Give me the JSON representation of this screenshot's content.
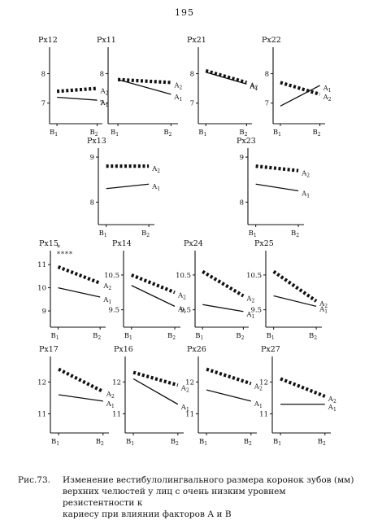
{
  "page_number": "195",
  "caption": {
    "label": "Рис.73.",
    "lines": [
      "Изменение вестибулолингвального размера коронок зубов (мм)",
      "верхних челюстей у лиц с очень низким уровнем резистентности к",
      "кариесу при влиянии  факторов А и В"
    ]
  },
  "colors": {
    "ink": "#111111"
  },
  "chart_data": [
    {
      "type": "line",
      "title": "Px12",
      "categories": [
        "B1",
        "B2"
      ],
      "yticks": [
        {
          "v": 7,
          "t": "7"
        },
        {
          "v": 8,
          "t": "8"
        }
      ],
      "ylim": [
        6.3,
        8.9
      ],
      "series": [
        {
          "name": "A2",
          "style": "dotted",
          "values": [
            7.4,
            7.5
          ]
        },
        {
          "name": "A1",
          "style": "solid",
          "values": [
            7.2,
            7.1
          ]
        }
      ]
    },
    {
      "type": "line",
      "title": "Px11",
      "categories": [
        "B1",
        "B2"
      ],
      "yticks": [
        {
          "v": 7,
          "t": "7"
        },
        {
          "v": 8,
          "t": "8"
        }
      ],
      "ylim": [
        6.3,
        8.9
      ],
      "series": [
        {
          "name": "A2",
          "style": "dotted",
          "values": [
            7.8,
            7.7
          ]
        },
        {
          "name": "A1",
          "style": "solid",
          "values": [
            7.8,
            7.3
          ]
        }
      ]
    },
    {
      "type": "line",
      "title": "Px21",
      "categories": [
        "B1",
        "B2"
      ],
      "yticks": [
        {
          "v": 7,
          "t": "7"
        },
        {
          "v": 8,
          "t": "8"
        }
      ],
      "ylim": [
        6.3,
        8.9
      ],
      "series": [
        {
          "name": "A2",
          "style": "dotted",
          "values": [
            8.1,
            7.7
          ]
        },
        {
          "name": "A1",
          "style": "solid",
          "values": [
            8.05,
            7.65
          ]
        }
      ]
    },
    {
      "type": "line",
      "title": "Px22",
      "categories": [
        "B1",
        "B2"
      ],
      "yticks": [
        {
          "v": 7,
          "t": "7"
        },
        {
          "v": 8,
          "t": "8"
        }
      ],
      "ylim": [
        6.3,
        8.9
      ],
      "series": [
        {
          "name": "A1",
          "style": "solid",
          "values": [
            6.9,
            7.6
          ]
        },
        {
          "name": "A2",
          "style": "dotted",
          "values": [
            7.7,
            7.3
          ]
        }
      ]
    },
    {
      "type": "line",
      "title": "Px13",
      "categories": [
        "B1",
        "B2"
      ],
      "yticks": [
        {
          "v": 8,
          "t": "8"
        },
        {
          "v": 9,
          "t": "9"
        }
      ],
      "ylim": [
        7.5,
        9.2
      ],
      "series": [
        {
          "name": "A2",
          "style": "dotted",
          "values": [
            8.8,
            8.8
          ]
        },
        {
          "name": "A1",
          "style": "solid",
          "values": [
            8.3,
            8.4
          ]
        }
      ]
    },
    {
      "type": "line",
      "title": "Px23",
      "categories": [
        "B1",
        "B2"
      ],
      "yticks": [
        {
          "v": 8,
          "t": "8"
        },
        {
          "v": 9,
          "t": "9"
        }
      ],
      "ylim": [
        7.5,
        9.2
      ],
      "series": [
        {
          "name": "A2",
          "style": "dotted",
          "values": [
            8.8,
            8.7
          ]
        },
        {
          "name": "A1",
          "style": "solid",
          "values": [
            8.4,
            8.25
          ]
        }
      ]
    },
    {
      "type": "line",
      "title": "Px15",
      "annotation": "*\n****",
      "categories": [
        "B1",
        "B2"
      ],
      "yticks": [
        {
          "v": 9,
          "t": "9"
        },
        {
          "v": 10,
          "t": "10"
        },
        {
          "v": 11,
          "t": "11"
        }
      ],
      "ylim": [
        8.3,
        11.6
      ],
      "series": [
        {
          "name": "A2",
          "style": "dotted",
          "values": [
            10.9,
            10.2
          ]
        },
        {
          "name": "A1",
          "style": "solid",
          "values": [
            10.0,
            9.6
          ]
        }
      ]
    },
    {
      "type": "line",
      "title": "Px14",
      "categories": [
        "B1",
        "B2"
      ],
      "yticks": [
        {
          "v": 9.5,
          "t": "9.5"
        },
        {
          "v": 10.5,
          "t": "10.5"
        }
      ],
      "ylim": [
        9.0,
        11.2
      ],
      "series": [
        {
          "name": "A2",
          "style": "dotted",
          "values": [
            10.5,
            10.0
          ]
        },
        {
          "name": "A1",
          "style": "solid",
          "values": [
            10.2,
            9.6
          ]
        }
      ]
    },
    {
      "type": "line",
      "title": "Px24",
      "categories": [
        "B1",
        "B2"
      ],
      "yticks": [
        {
          "v": 9.5,
          "t": "9.5"
        },
        {
          "v": 10.5,
          "t": "10.5"
        }
      ],
      "ylim": [
        9.0,
        11.2
      ],
      "series": [
        {
          "name": "A2",
          "style": "dotted",
          "values": [
            10.6,
            9.9
          ]
        },
        {
          "name": "A1",
          "style": "solid",
          "values": [
            9.65,
            9.45
          ]
        }
      ]
    },
    {
      "type": "line",
      "title": "Px25",
      "categories": [
        "B1",
        "B2"
      ],
      "yticks": [
        {
          "v": 9.5,
          "t": "9.5"
        },
        {
          "v": 10.5,
          "t": "10.5"
        }
      ],
      "ylim": [
        9.0,
        11.2
      ],
      "series": [
        {
          "name": "A2",
          "style": "dotted",
          "values": [
            10.6,
            9.75
          ]
        },
        {
          "name": "A1",
          "style": "solid",
          "values": [
            9.9,
            9.6
          ]
        }
      ]
    },
    {
      "type": "line",
      "title": "Px17",
      "categories": [
        "B1",
        "B2"
      ],
      "yticks": [
        {
          "v": 11,
          "t": "11"
        },
        {
          "v": 12,
          "t": "12"
        }
      ],
      "ylim": [
        10.4,
        12.8
      ],
      "series": [
        {
          "name": "A2",
          "style": "dotted",
          "values": [
            12.4,
            11.7
          ]
        },
        {
          "name": "A1",
          "style": "solid",
          "values": [
            11.6,
            11.4
          ]
        }
      ]
    },
    {
      "type": "line",
      "title": "Px16",
      "categories": [
        "B1",
        "B2"
      ],
      "yticks": [
        {
          "v": 11,
          "t": "11"
        },
        {
          "v": 12,
          "t": "12"
        }
      ],
      "ylim": [
        10.4,
        12.8
      ],
      "series": [
        {
          "name": "A2",
          "style": "dotted",
          "values": [
            12.3,
            11.9
          ]
        },
        {
          "name": "A1",
          "style": "solid",
          "values": [
            12.1,
            11.3
          ]
        }
      ]
    },
    {
      "type": "line",
      "title": "Px26",
      "categories": [
        "B1",
        "B2"
      ],
      "yticks": [
        {
          "v": 11,
          "t": "11"
        },
        {
          "v": 12,
          "t": "12"
        }
      ],
      "ylim": [
        10.4,
        12.8
      ],
      "series": [
        {
          "name": "A2",
          "style": "dotted",
          "values": [
            12.4,
            11.95
          ]
        },
        {
          "name": "A1",
          "style": "solid",
          "values": [
            11.75,
            11.4
          ]
        }
      ]
    },
    {
      "type": "line",
      "title": "Px27",
      "categories": [
        "B1",
        "B2"
      ],
      "yticks": [
        {
          "v": 11,
          "t": "11"
        },
        {
          "v": 12,
          "t": "12"
        }
      ],
      "ylim": [
        10.4,
        12.8
      ],
      "series": [
        {
          "name": "A2",
          "style": "dotted",
          "values": [
            12.1,
            11.55
          ]
        },
        {
          "name": "A1",
          "style": "solid",
          "values": [
            11.3,
            11.3
          ]
        }
      ]
    }
  ]
}
